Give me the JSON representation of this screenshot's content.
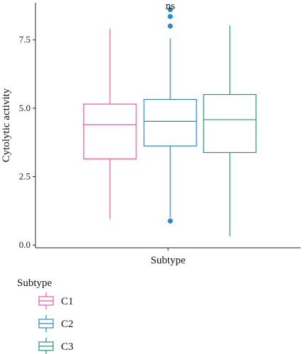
{
  "chart_data": {
    "type": "boxplot",
    "xlabel": "Subtype",
    "ylabel": "Cytolytic activity",
    "ylim": [
      -0.1,
      8.85
    ],
    "yticks": [
      0.0,
      2.5,
      5.0,
      7.5
    ],
    "ytick_labels": [
      "0.0",
      "2.5",
      "5.0",
      "7.5"
    ],
    "annotation": "ns",
    "grid": false,
    "legend": {
      "title": "Subtype",
      "placement": "bottom-left"
    },
    "series": [
      {
        "name": "C1",
        "color": "#e8599f",
        "whisker_low": 0.95,
        "q1": 3.15,
        "median": 4.4,
        "q3": 5.15,
        "whisker_high": 7.9,
        "outliers": []
      },
      {
        "name": "C2",
        "color": "#2e86c8",
        "whisker_low": 1.0,
        "q1": 3.62,
        "median": 4.52,
        "q3": 5.32,
        "whisker_high": 7.55,
        "outliers": [
          0.88,
          8.0,
          8.35,
          8.6
        ]
      },
      {
        "name": "C3",
        "color": "#1f9a70",
        "whisker_low": 0.32,
        "q1": 3.38,
        "median": 4.58,
        "q3": 5.5,
        "whisker_high": 8.02,
        "outliers": []
      }
    ]
  }
}
